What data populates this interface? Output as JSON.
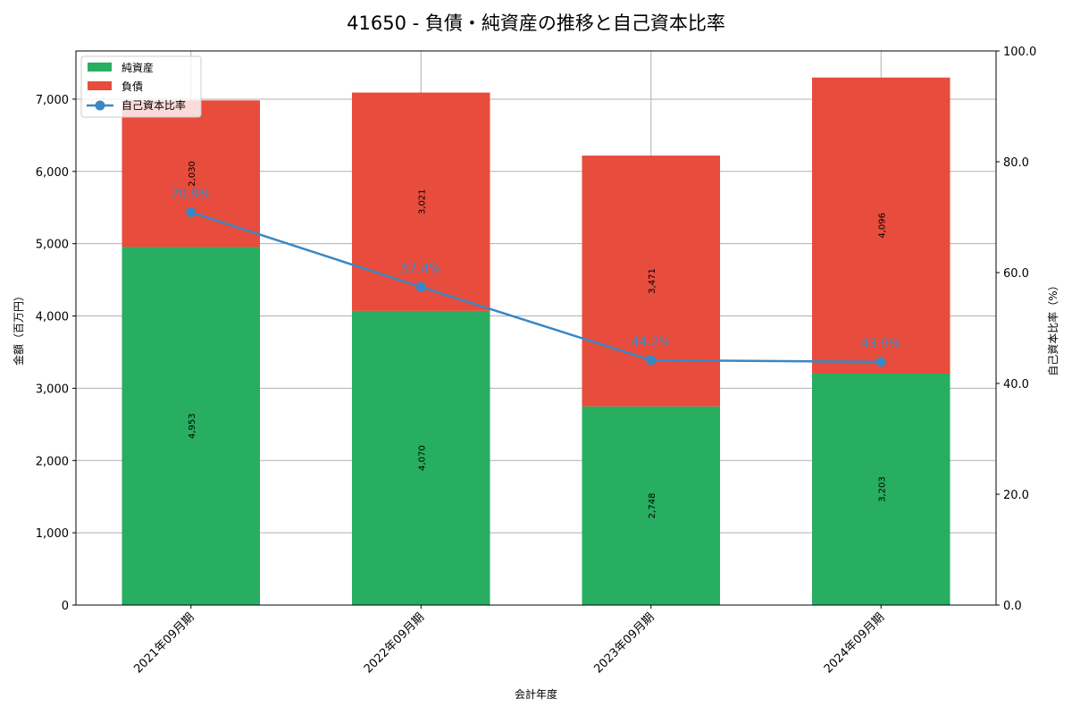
{
  "chart_data": {
    "type": "bar",
    "subtype": "stacked_bar_with_line_secondary_axis",
    "title": "41650 - 負債・純資産の推移と自己資本比率",
    "xlabel": "会計年度",
    "ylabel": "金額（百万円）",
    "y2label": "自己資本比率（%）",
    "categories": [
      "2021年09月期",
      "2022年09月期",
      "2023年09月期",
      "2024年09月期"
    ],
    "series": [
      {
        "name": "純資産",
        "type": "bar",
        "color": "#27ae60",
        "values": [
          4953,
          4070,
          2748,
          3203
        ],
        "labels": [
          "4,953",
          "4,070",
          "2,748",
          "3,203"
        ]
      },
      {
        "name": "負債",
        "type": "bar",
        "color": "#e74c3c",
        "values": [
          2030,
          3021,
          3471,
          4096
        ],
        "labels": [
          "2,030",
          "3,021",
          "3,471",
          "4,096"
        ]
      },
      {
        "name": "自己資本比率",
        "type": "line",
        "axis": "right",
        "color": "#3a87c4",
        "values": [
          70.9,
          57.4,
          44.2,
          43.9
        ],
        "labels": [
          "70.9%",
          "57.4%",
          "44.2%",
          "43.9%"
        ]
      }
    ],
    "ylim": [
      0,
      7667
    ],
    "y2lim": [
      0,
      100
    ],
    "yticks": [
      0,
      1000,
      2000,
      3000,
      4000,
      5000,
      6000,
      7000
    ],
    "ytick_labels": [
      "0",
      "1,000",
      "2,000",
      "3,000",
      "4,000",
      "5,000",
      "6,000",
      "7,000"
    ],
    "y2ticks": [
      0,
      20,
      40,
      60,
      80,
      100
    ],
    "y2tick_labels": [
      "0.0",
      "20.0",
      "40.0",
      "60.0",
      "80.0",
      "100.0"
    ],
    "grid": true,
    "legend_position": "upper left"
  }
}
